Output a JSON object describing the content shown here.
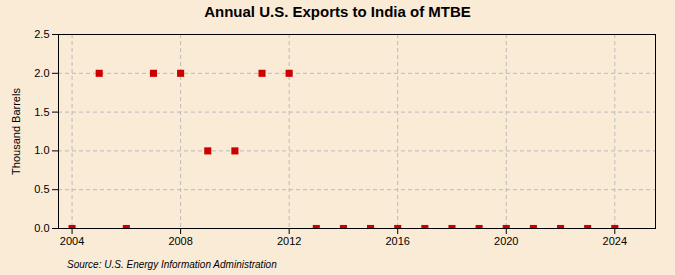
{
  "chart_data": {
    "type": "scatter",
    "title": "Annual U.S. Exports to India of MTBE",
    "ylabel": "Thousand Barrels",
    "annotations": [
      "Source: U.S. Energy Information Administration"
    ],
    "x": [
      2004,
      2005,
      2006,
      2007,
      2008,
      2009,
      2010,
      2011,
      2012,
      2013,
      2014,
      2015,
      2016,
      2017,
      2018,
      2019,
      2020,
      2021,
      2022,
      2023,
      2024
    ],
    "values": [
      0,
      2,
      0,
      2,
      2,
      1,
      1,
      2,
      2,
      0,
      0,
      0,
      0,
      0,
      0,
      0,
      0,
      0,
      0,
      0,
      0
    ],
    "color": "#cc0000",
    "marker": "square",
    "xlim": [
      2003.5,
      2025.5
    ],
    "xticks": [
      2004,
      2008,
      2012,
      2016,
      2020,
      2024
    ],
    "ylim": [
      0,
      2.5
    ],
    "yticks": [
      {
        "value": 0,
        "label": "0.0"
      },
      0.5,
      {
        "value": 1,
        "label": "1.0"
      },
      1.5,
      {
        "value": 2,
        "label": "2.0"
      },
      2.5
    ],
    "grid": true
  }
}
